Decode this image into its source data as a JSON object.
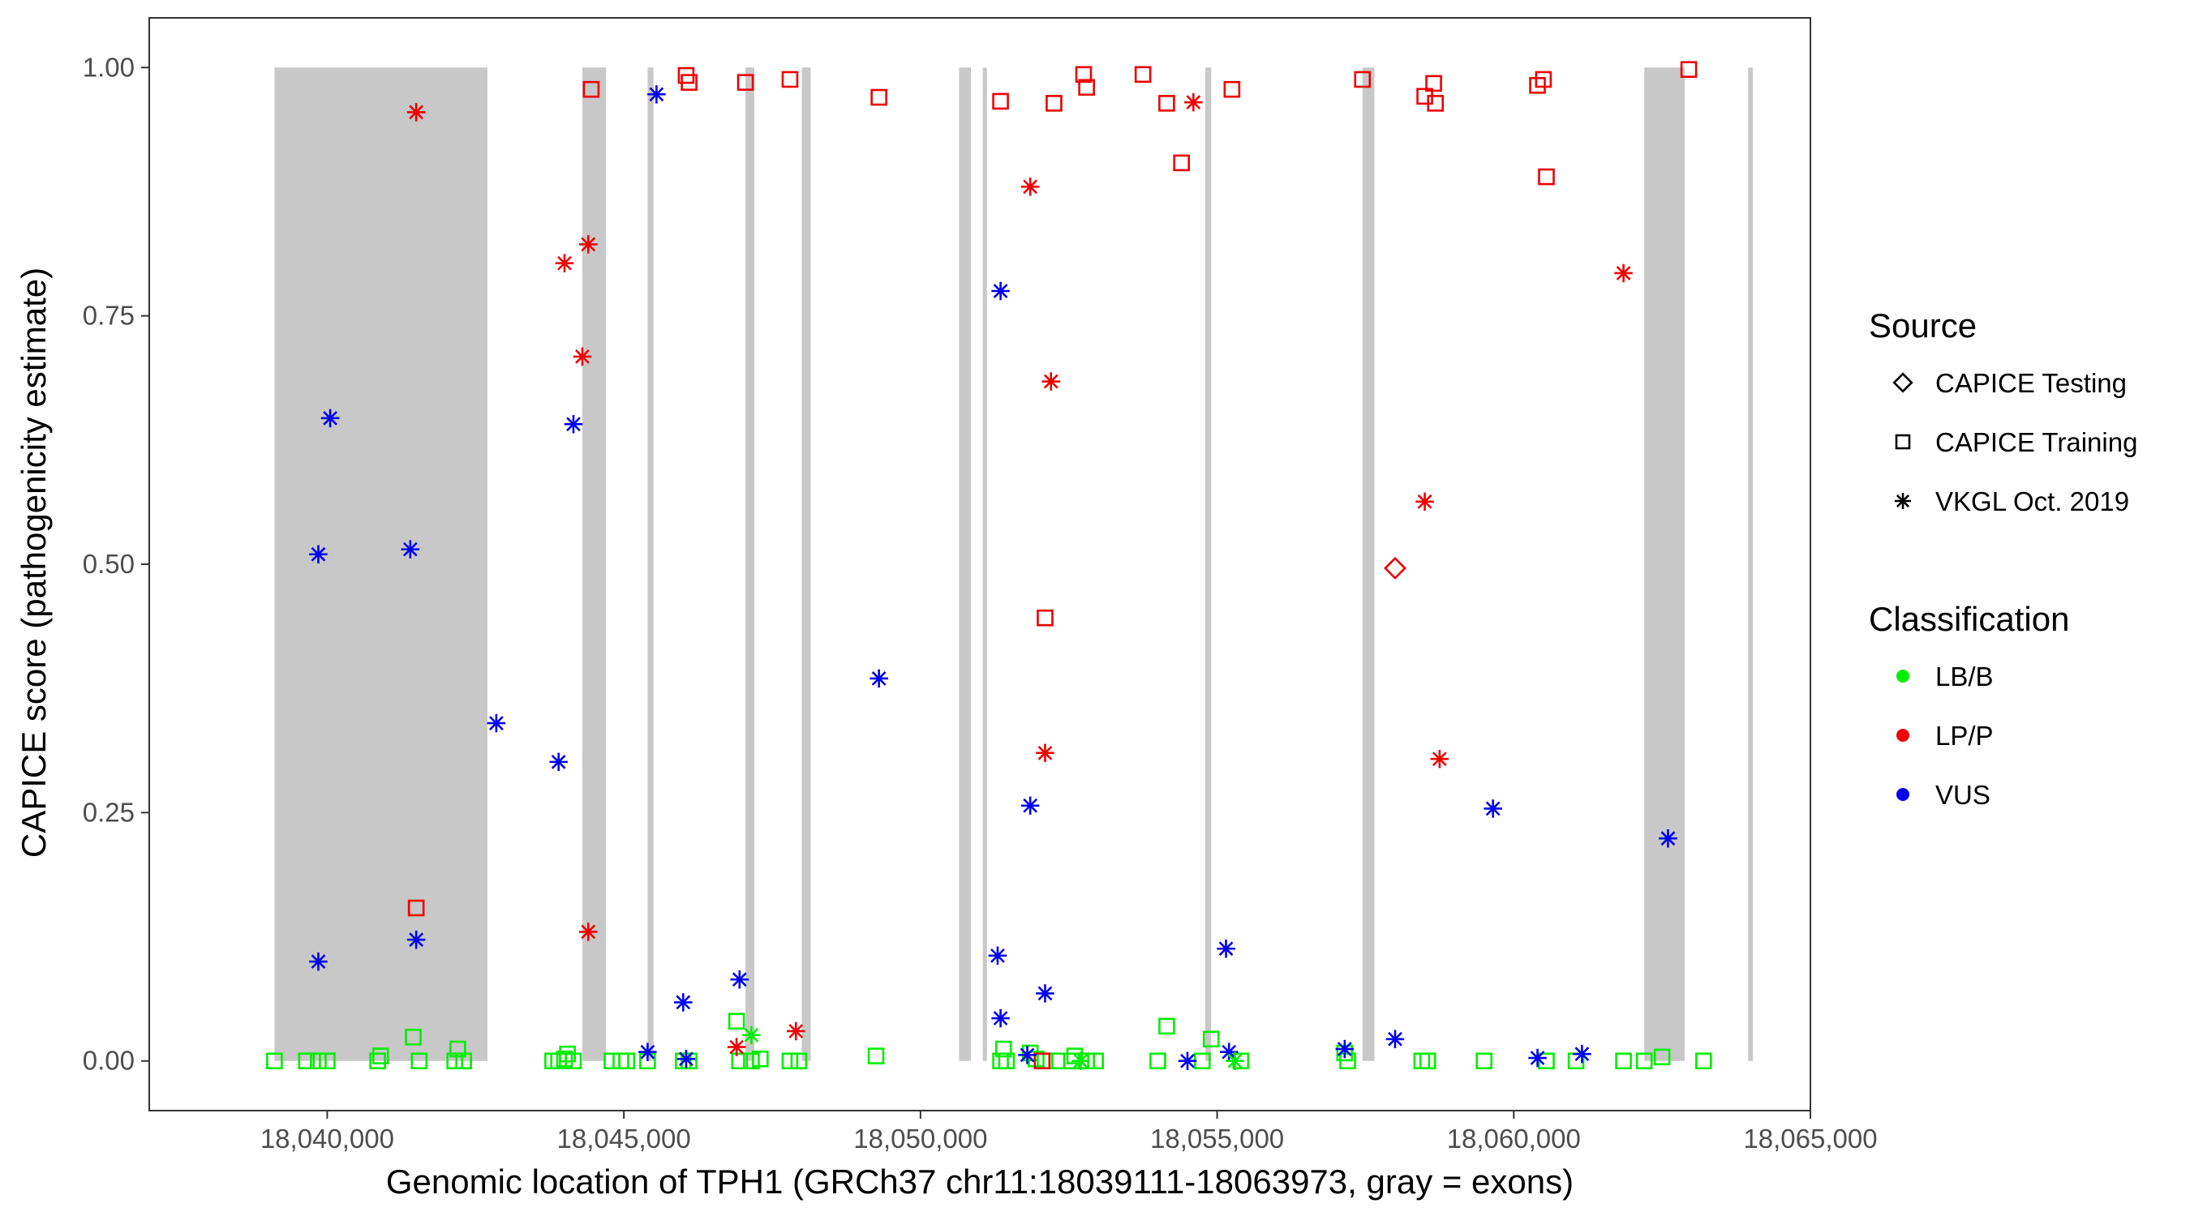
{
  "chart_data": {
    "type": "scatter",
    "title": "",
    "xlabel": "Genomic location of TPH1 (GRCh37 chr11:18039111-18063973, gray = exons)",
    "ylabel": "CAPICE score (pathogenicity estimate)",
    "xlim": [
      18037000,
      18065000
    ],
    "ylim": [
      -0.05,
      1.05
    ],
    "x_ticks": [
      18040000,
      18045000,
      18050000,
      18055000,
      18060000,
      18065000
    ],
    "x_tick_labels": [
      "18,040,000",
      "18,045,000",
      "18,050,000",
      "18,055,000",
      "18,060,000",
      "18,065,000"
    ],
    "y_ticks": [
      0.0,
      0.25,
      0.5,
      0.75,
      1.0
    ],
    "y_tick_labels": [
      "0.00",
      "0.25",
      "0.50",
      "0.75",
      "1.00"
    ],
    "grid": false,
    "legend_position": "right",
    "exons": [
      [
        18039111,
        18042700
      ],
      [
        18044300,
        18044700
      ],
      [
        18045400,
        18045500
      ],
      [
        18047050,
        18047200
      ],
      [
        18048000,
        18048150
      ],
      [
        18050650,
        18050850
      ],
      [
        18051050,
        18051120
      ],
      [
        18054800,
        18054900
      ],
      [
        18057450,
        18057650
      ],
      [
        18062200,
        18062880
      ],
      [
        18063950,
        18064030
      ]
    ],
    "legend": {
      "source_title": "Source",
      "source_items": [
        {
          "label": "CAPICE Testing",
          "shape": "diamond"
        },
        {
          "label": "CAPICE Training",
          "shape": "square"
        },
        {
          "label": "VKGL Oct. 2019",
          "shape": "asterisk"
        }
      ],
      "class_title": "Classification",
      "class_items": [
        {
          "label": "LB/B",
          "color": "#00ee00"
        },
        {
          "label": "LP/P",
          "color": "#ee0000"
        },
        {
          "label": "VUS",
          "color": "#0000ee"
        }
      ]
    },
    "colors": {
      "LB/B": "#00ee00",
      "LP/P": "#ee0000",
      "VUS": "#0000ee",
      "exon": "#c8c8c8"
    },
    "series": [
      {
        "name": "CAPICE Testing",
        "shape": "diamond",
        "points": [
          [
            18058000,
            0.496,
            "LP/P"
          ]
        ]
      },
      {
        "name": "CAPICE Training",
        "shape": "square",
        "points": [
          [
            18044450,
            0.978,
            "LP/P"
          ],
          [
            18046050,
            0.992,
            "LP/P"
          ],
          [
            18046100,
            0.985,
            "LP/P"
          ],
          [
            18047050,
            0.985,
            "LP/P"
          ],
          [
            18047800,
            0.988,
            "LP/P"
          ],
          [
            18049300,
            0.97,
            "LP/P"
          ],
          [
            18051350,
            0.966,
            "LP/P"
          ],
          [
            18052250,
            0.964,
            "LP/P"
          ],
          [
            18052750,
            0.993,
            "LP/P"
          ],
          [
            18052800,
            0.98,
            "LP/P"
          ],
          [
            18053750,
            0.993,
            "LP/P"
          ],
          [
            18054150,
            0.964,
            "LP/P"
          ],
          [
            18054400,
            0.904,
            "LP/P"
          ],
          [
            18055250,
            0.978,
            "LP/P"
          ],
          [
            18057450,
            0.988,
            "LP/P"
          ],
          [
            18058500,
            0.971,
            "LP/P"
          ],
          [
            18058650,
            0.984,
            "LP/P"
          ],
          [
            18058680,
            0.964,
            "LP/P"
          ],
          [
            18060400,
            0.982,
            "LP/P"
          ],
          [
            18060500,
            0.988,
            "LP/P"
          ],
          [
            18060550,
            0.89,
            "LP/P"
          ],
          [
            18062950,
            0.998,
            "LP/P"
          ],
          [
            18052100,
            0.446,
            "LP/P"
          ],
          [
            18041500,
            0.154,
            "LP/P"
          ],
          [
            18039111,
            0.0,
            "LB/B"
          ],
          [
            18039650,
            0.0,
            "LB/B"
          ],
          [
            18039850,
            0.0,
            "LB/B"
          ],
          [
            18040000,
            0.0,
            "LB/B"
          ],
          [
            18040850,
            0.0,
            "LB/B"
          ],
          [
            18040900,
            0.005,
            "LB/B"
          ],
          [
            18041450,
            0.024,
            "LB/B"
          ],
          [
            18041550,
            0.0,
            "LB/B"
          ],
          [
            18042150,
            0.0,
            "LB/B"
          ],
          [
            18042200,
            0.012,
            "LB/B"
          ],
          [
            18042300,
            0.0,
            "LB/B"
          ],
          [
            18043800,
            0.0,
            "LB/B"
          ],
          [
            18043900,
            0.0,
            "LB/B"
          ],
          [
            18044000,
            0.002,
            "LB/B"
          ],
          [
            18044050,
            0.007,
            "LB/B"
          ],
          [
            18044150,
            0.0,
            "LB/B"
          ],
          [
            18044800,
            0.0,
            "LB/B"
          ],
          [
            18044950,
            0.0,
            "LB/B"
          ],
          [
            18045050,
            0.0,
            "LB/B"
          ],
          [
            18045400,
            0.0,
            "LB/B"
          ],
          [
            18046000,
            0.0,
            "LB/B"
          ],
          [
            18046100,
            0.0,
            "LB/B"
          ],
          [
            18046900,
            0.04,
            "LB/B"
          ],
          [
            18046950,
            0.0,
            "LB/B"
          ],
          [
            18047150,
            0.0,
            "LB/B"
          ],
          [
            18047300,
            0.002,
            "LB/B"
          ],
          [
            18047800,
            0.0,
            "LB/B"
          ],
          [
            18047950,
            0.0,
            "LB/B"
          ],
          [
            18049250,
            0.005,
            "LB/B"
          ],
          [
            18051350,
            0.0,
            "LB/B"
          ],
          [
            18051400,
            0.012,
            "LB/B"
          ],
          [
            18051450,
            0.0,
            "LB/B"
          ],
          [
            18051850,
            0.008,
            "LB/B"
          ],
          [
            18051950,
            0.002,
            "LB/B"
          ],
          [
            18052100,
            0.0,
            "LB/B"
          ],
          [
            18052300,
            0.0,
            "LB/B"
          ],
          [
            18052550,
            0.0,
            "LB/B"
          ],
          [
            18052600,
            0.005,
            "LB/B"
          ],
          [
            18052800,
            0.0,
            "LB/B"
          ],
          [
            18052950,
            0.0,
            "LB/B"
          ],
          [
            18054000,
            0.0,
            "LB/B"
          ],
          [
            18054150,
            0.035,
            "LB/B"
          ],
          [
            18054750,
            0.0,
            "LB/B"
          ],
          [
            18054900,
            0.022,
            "LB/B"
          ],
          [
            18055400,
            0.0,
            "LB/B"
          ],
          [
            18057150,
            0.008,
            "LB/B"
          ],
          [
            18057200,
            0.0,
            "LB/B"
          ],
          [
            18058450,
            0.0,
            "LB/B"
          ],
          [
            18058550,
            0.0,
            "LB/B"
          ],
          [
            18059500,
            0.0,
            "LB/B"
          ],
          [
            18060550,
            0.0,
            "LB/B"
          ],
          [
            18061050,
            0.0,
            "LB/B"
          ],
          [
            18061850,
            0.0,
            "LB/B"
          ],
          [
            18062200,
            0.0,
            "LB/B"
          ],
          [
            18062500,
            0.004,
            "LB/B"
          ],
          [
            18063200,
            0.0,
            "LB/B"
          ],
          [
            18052050,
            0.0,
            "LP/P"
          ]
        ]
      },
      {
        "name": "VKGL Oct. 2019",
        "shape": "asterisk",
        "points": [
          [
            18041500,
            0.955,
            "LP/P"
          ],
          [
            18044000,
            0.803,
            "LP/P"
          ],
          [
            18044400,
            0.822,
            "LP/P"
          ],
          [
            18044300,
            0.709,
            "LP/P"
          ],
          [
            18044400,
            0.13,
            "LP/P"
          ],
          [
            18046900,
            0.014,
            "LP/P"
          ],
          [
            18047900,
            0.03,
            "LP/P"
          ],
          [
            18051850,
            0.88,
            "LP/P"
          ],
          [
            18052200,
            0.684,
            "LP/P"
          ],
          [
            18052100,
            0.31,
            "LP/P"
          ],
          [
            18054600,
            0.965,
            "LP/P"
          ],
          [
            18058500,
            0.563,
            "LP/P"
          ],
          [
            18058750,
            0.304,
            "LP/P"
          ],
          [
            18061850,
            0.793,
            "LP/P"
          ],
          [
            18045550,
            0.973,
            "VUS"
          ],
          [
            18040050,
            0.647,
            "VUS"
          ],
          [
            18039850,
            0.51,
            "VUS"
          ],
          [
            18041400,
            0.515,
            "VUS"
          ],
          [
            18044150,
            0.641,
            "VUS"
          ],
          [
            18042850,
            0.34,
            "VUS"
          ],
          [
            18043900,
            0.301,
            "VUS"
          ],
          [
            18039850,
            0.1,
            "VUS"
          ],
          [
            18041500,
            0.122,
            "VUS"
          ],
          [
            18046000,
            0.059,
            "VUS"
          ],
          [
            18046950,
            0.082,
            "VUS"
          ],
          [
            18045400,
            0.009,
            "VUS"
          ],
          [
            18046050,
            0.002,
            "VUS"
          ],
          [
            18049300,
            0.385,
            "VUS"
          ],
          [
            18051350,
            0.775,
            "VUS"
          ],
          [
            18051300,
            0.106,
            "VUS"
          ],
          [
            18051350,
            0.043,
            "VUS"
          ],
          [
            18051850,
            0.257,
            "VUS"
          ],
          [
            18052100,
            0.068,
            "VUS"
          ],
          [
            18051800,
            0.006,
            "VUS"
          ],
          [
            18055150,
            0.113,
            "VUS"
          ],
          [
            18055200,
            0.009,
            "VUS"
          ],
          [
            18054500,
            0.0,
            "VUS"
          ],
          [
            18057150,
            0.012,
            "VUS"
          ],
          [
            18058000,
            0.022,
            "VUS"
          ],
          [
            18059650,
            0.254,
            "VUS"
          ],
          [
            18060400,
            0.003,
            "VUS"
          ],
          [
            18061150,
            0.007,
            "VUS"
          ],
          [
            18062600,
            0.224,
            "VUS"
          ],
          [
            18047150,
            0.026,
            "LB/B"
          ],
          [
            18055300,
            0.0,
            "LB/B"
          ],
          [
            18052700,
            0.0,
            "LB/B"
          ]
        ]
      }
    ]
  }
}
